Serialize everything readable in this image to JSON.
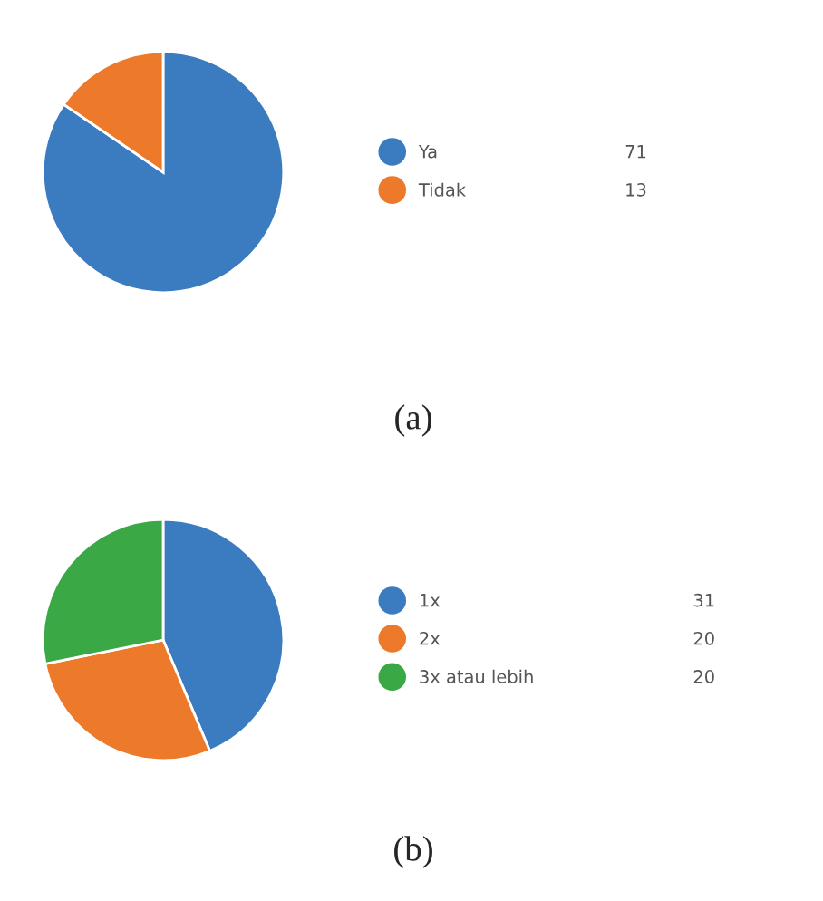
{
  "chart_data": [
    {
      "type": "pie",
      "categories": [
        "Ya",
        "Tidak"
      ],
      "values": [
        71,
        13
      ],
      "colors": [
        "#3a7cbf",
        "#ec7a2a"
      ],
      "data_labels": true,
      "legend": "right",
      "annotations": [
        "(a)"
      ]
    },
    {
      "type": "pie",
      "categories": [
        "1x",
        "2x",
        "3x atau lebih"
      ],
      "values": [
        31,
        20,
        20
      ],
      "colors": [
        "#3a7cbf",
        "#ec7a2a",
        "#3aa845"
      ],
      "data_labels": true,
      "legend": "right",
      "annotations": [
        "(b)"
      ]
    }
  ]
}
